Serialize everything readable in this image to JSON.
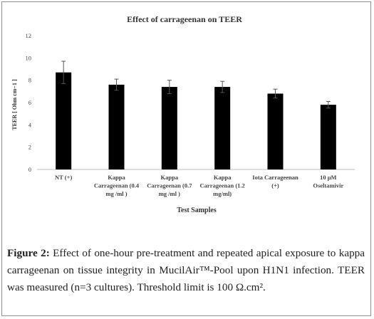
{
  "chart_data": {
    "type": "bar",
    "title": "Effect of carrageenan on TEER",
    "xlabel": "Test Samples",
    "ylabel": "TEER [ Ohm cm−1 ]",
    "ylim": [
      0,
      12
    ],
    "yticks": [
      "0",
      "2",
      "4",
      "6",
      "8",
      "10",
      "12"
    ],
    "grid": false,
    "categories": [
      [
        "NT (+)"
      ],
      [
        "Kappa",
        "Carrageenan (0.4",
        "mg /ml )"
      ],
      [
        "Kappa",
        "Carrageenan (0.7",
        "mg /ml )"
      ],
      [
        "Kappa",
        "Carrageenan (1.2",
        "mg/ml)"
      ],
      [
        "Iota Carrageenan",
        "(+)"
      ],
      [
        "10 μM",
        "Oseltamivir"
      ]
    ],
    "values": [
      8.7,
      7.6,
      7.4,
      7.4,
      6.8,
      5.8
    ],
    "errors": [
      1.0,
      0.5,
      0.6,
      0.5,
      0.4,
      0.3
    ],
    "bar_color": "#000000"
  },
  "caption": {
    "label": "Figure 2:",
    "text": " Effect of one-hour pre-treatment and repeated apical exposure to kappa carrageenan on tissue integrity in MucilAir™-Pool upon H1N1 infection. TEER was measured (n=3 cultures). Threshold limit is 100 Ω.cm²."
  }
}
